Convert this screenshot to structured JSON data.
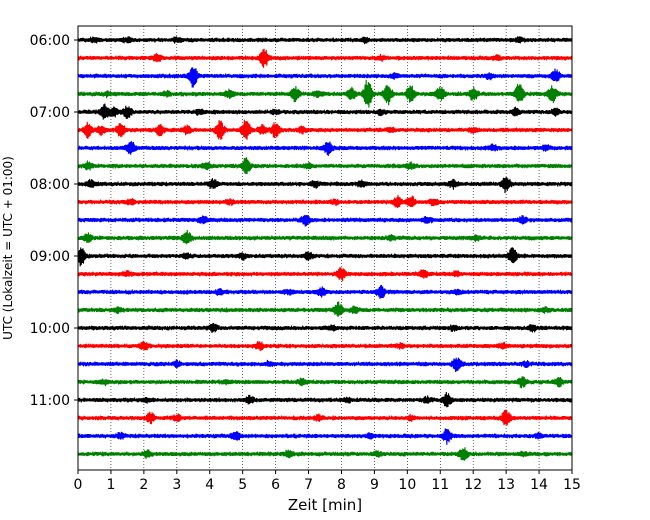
{
  "chart_data": {
    "type": "line",
    "title": "",
    "xlabel": "Zeit  [min]",
    "ylabel": "UTC (Lokalzeit = UTC + 01:00)",
    "xlim": [
      0,
      15
    ],
    "x_ticks": [
      "0",
      "1",
      "2",
      "3",
      "4",
      "5",
      "6",
      "7",
      "8",
      "9",
      "10",
      "11",
      "12",
      "13",
      "14",
      "15"
    ],
    "y_ticks": [
      "06:00",
      "07:00",
      "08:00",
      "09:00",
      "10:00",
      "11:00"
    ],
    "grid": "vertical dotted",
    "trace_interval_min": 15,
    "series": [
      {
        "start": "06:00",
        "color": "#000000",
        "events": [
          [
            0.5,
            0.3
          ],
          [
            1.5,
            0.3
          ],
          [
            3.0,
            0.3
          ],
          [
            8.7,
            0.3
          ],
          [
            13.4,
            0.3
          ]
        ]
      },
      {
        "start": "06:15",
        "color": "#ff0000",
        "events": [
          [
            5.65,
            1.4
          ],
          [
            2.4,
            0.5
          ],
          [
            9.2,
            0.3
          ],
          [
            12.7,
            0.3
          ]
        ]
      },
      {
        "start": "06:30",
        "color": "#0000ff",
        "events": [
          [
            3.5,
            1.6
          ],
          [
            14.5,
            0.9
          ],
          [
            9.6,
            0.3
          ],
          [
            12.5,
            0.4
          ]
        ]
      },
      {
        "start": "06:45",
        "color": "#008000",
        "events": [
          [
            8.8,
            2.2
          ],
          [
            9.4,
            1.5
          ],
          [
            10.1,
            1.2
          ],
          [
            8.3,
            0.9
          ],
          [
            11.0,
            1.0
          ],
          [
            12.0,
            0.9
          ],
          [
            13.4,
            1.5
          ],
          [
            14.4,
            1.2
          ],
          [
            6.6,
            1.0
          ],
          [
            4.6,
            0.6
          ],
          [
            7.3,
            0.4
          ],
          [
            2.7,
            0.3
          ],
          [
            0.9,
            0.3
          ]
        ]
      },
      {
        "start": "07:00",
        "color": "#000000",
        "events": [
          [
            0.8,
            1.0
          ],
          [
            1.5,
            0.9
          ],
          [
            1.1,
            0.6
          ],
          [
            3.7,
            0.4
          ],
          [
            6.0,
            0.3
          ],
          [
            9.2,
            0.3
          ],
          [
            13.3,
            0.5
          ],
          [
            14.5,
            0.4
          ]
        ]
      },
      {
        "start": "07:15",
        "color": "#ff0000",
        "events": [
          [
            0.3,
            1.0
          ],
          [
            0.7,
            0.6
          ],
          [
            1.3,
            1.0
          ],
          [
            2.5,
            0.7
          ],
          [
            3.3,
            0.6
          ],
          [
            4.3,
            1.4
          ],
          [
            5.1,
            1.6
          ],
          [
            6.0,
            1.1
          ],
          [
            5.6,
            0.7
          ],
          [
            6.8,
            0.4
          ],
          [
            9.5,
            0.4
          ],
          [
            12.0,
            0.3
          ]
        ]
      },
      {
        "start": "07:30",
        "color": "#0000ff",
        "events": [
          [
            1.6,
            1.0
          ],
          [
            7.6,
            0.9
          ],
          [
            12.6,
            0.4
          ],
          [
            14.2,
            0.3
          ]
        ]
      },
      {
        "start": "07:45",
        "color": "#008000",
        "events": [
          [
            5.1,
            1.2
          ],
          [
            0.3,
            0.5
          ],
          [
            3.9,
            0.5
          ],
          [
            10.1,
            0.4
          ],
          [
            7.0,
            0.3
          ]
        ]
      },
      {
        "start": "08:00",
        "color": "#000000",
        "events": [
          [
            13.0,
            1.2
          ],
          [
            0.4,
            0.6
          ],
          [
            4.1,
            0.6
          ],
          [
            7.2,
            0.5
          ],
          [
            11.4,
            0.5
          ],
          [
            8.6,
            0.4
          ]
        ]
      },
      {
        "start": "08:15",
        "color": "#ff0000",
        "events": [
          [
            9.7,
            0.8
          ],
          [
            10.1,
            0.9
          ],
          [
            10.8,
            0.5
          ],
          [
            1.6,
            0.3
          ],
          [
            4.6,
            0.3
          ],
          [
            7.8,
            0.3
          ]
        ]
      },
      {
        "start": "08:30",
        "color": "#0000ff",
        "events": [
          [
            3.8,
            0.5
          ],
          [
            6.9,
            0.7
          ],
          [
            10.6,
            0.4
          ],
          [
            13.5,
            0.4
          ]
        ]
      },
      {
        "start": "08:45",
        "color": "#008000",
        "events": [
          [
            0.3,
            0.6
          ],
          [
            3.3,
            1.0
          ],
          [
            9.5,
            0.3
          ],
          [
            12.1,
            0.3
          ]
        ]
      },
      {
        "start": "09:00",
        "color": "#000000",
        "events": [
          [
            0.1,
            1.4
          ],
          [
            13.2,
            1.2
          ],
          [
            7.0,
            0.5
          ],
          [
            5.0,
            0.4
          ],
          [
            3.3,
            0.3
          ]
        ]
      },
      {
        "start": "09:15",
        "color": "#ff0000",
        "events": [
          [
            8.0,
            0.9
          ],
          [
            10.5,
            0.6
          ],
          [
            1.5,
            0.3
          ],
          [
            11.5,
            0.3
          ]
        ]
      },
      {
        "start": "09:30",
        "color": "#0000ff",
        "events": [
          [
            9.2,
            0.9
          ],
          [
            7.4,
            0.6
          ],
          [
            6.4,
            0.3
          ],
          [
            4.3,
            0.3
          ],
          [
            11.5,
            0.3
          ]
        ]
      },
      {
        "start": "09:45",
        "color": "#008000",
        "events": [
          [
            7.9,
            1.0
          ],
          [
            8.4,
            0.4
          ],
          [
            1.2,
            0.3
          ],
          [
            14.2,
            0.3
          ]
        ]
      },
      {
        "start": "10:00",
        "color": "#000000",
        "events": [
          [
            4.1,
            0.5
          ],
          [
            7.7,
            0.4
          ],
          [
            11.4,
            0.3
          ],
          [
            13.8,
            0.4
          ]
        ]
      },
      {
        "start": "10:15",
        "color": "#ff0000",
        "events": [
          [
            2.0,
            0.6
          ],
          [
            5.5,
            0.5
          ],
          [
            9.8,
            0.3
          ],
          [
            12.9,
            0.4
          ]
        ]
      },
      {
        "start": "10:30",
        "color": "#0000ff",
        "events": [
          [
            11.5,
            1.0
          ],
          [
            3.0,
            0.4
          ],
          [
            5.8,
            0.3
          ],
          [
            13.6,
            0.3
          ]
        ]
      },
      {
        "start": "10:45",
        "color": "#008000",
        "events": [
          [
            13.5,
            0.7
          ],
          [
            14.6,
            0.6
          ],
          [
            6.8,
            0.4
          ],
          [
            0.8,
            0.3
          ],
          [
            4.5,
            0.3
          ]
        ]
      },
      {
        "start": "11:00",
        "color": "#000000",
        "events": [
          [
            11.2,
            1.0
          ],
          [
            5.2,
            0.5
          ],
          [
            10.6,
            0.4
          ],
          [
            8.2,
            0.3
          ],
          [
            2.1,
            0.3
          ]
        ]
      },
      {
        "start": "11:15",
        "color": "#ff0000",
        "events": [
          [
            2.2,
            0.7
          ],
          [
            13.0,
            1.1
          ],
          [
            3.0,
            0.4
          ],
          [
            7.3,
            0.4
          ],
          [
            10.1,
            0.3
          ]
        ]
      },
      {
        "start": "11:30",
        "color": "#0000ff",
        "events": [
          [
            11.2,
            1.0
          ],
          [
            4.8,
            0.6
          ],
          [
            1.3,
            0.4
          ],
          [
            8.9,
            0.3
          ],
          [
            14.0,
            0.3
          ]
        ]
      },
      {
        "start": "11:45",
        "color": "#008000",
        "events": [
          [
            11.7,
            0.9
          ],
          [
            2.1,
            0.5
          ],
          [
            6.4,
            0.4
          ],
          [
            9.1,
            0.3
          ],
          [
            13.5,
            0.3
          ]
        ]
      }
    ]
  }
}
